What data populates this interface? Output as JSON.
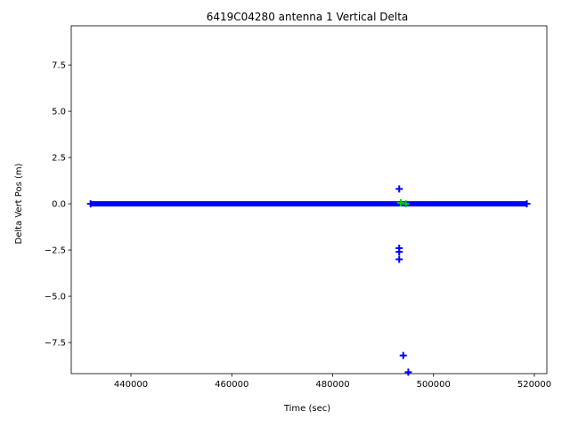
{
  "chart_data": {
    "type": "scatter",
    "title": "6419C04280 antenna 1 Vertical Delta",
    "x_label": "Time (sec)",
    "y_label": "Delta Vert Pos (m)",
    "xlim": [
      428170,
      522470
    ],
    "ylim": [
      -9.18,
      9.62
    ],
    "xticks": [
      440000,
      460000,
      480000,
      500000,
      520000
    ],
    "yticks": [
      {
        "value": -7.5,
        "label": "−7.5"
      },
      {
        "value": -5.0,
        "label": "−5.0"
      },
      {
        "value": -2.5,
        "label": "−2.5"
      },
      {
        "value": 0.0,
        "label": "0.0"
      },
      {
        "value": 2.5,
        "label": "2.5"
      },
      {
        "value": 5.0,
        "label": "5.0"
      },
      {
        "value": 7.5,
        "label": "7.5"
      }
    ],
    "series": [
      {
        "color": "#0000ff",
        "style": "line",
        "x": [
          432000,
          450000,
          470000,
          490000,
          510000,
          518500
        ],
        "values": [
          0,
          0,
          0,
          0,
          0,
          0
        ]
      },
      {
        "color": "#0000ff",
        "style": "marker",
        "x": [
          432000,
          518500,
          493200,
          493200,
          493200,
          493200,
          494000,
          495000
        ],
        "values": [
          0,
          0,
          0.8,
          -2.4,
          -2.6,
          -3.0,
          -8.2,
          -9.1
        ]
      },
      {
        "color": "#00cc00",
        "style": "marker",
        "x": [
          493500,
          494500
        ],
        "values": [
          0.05,
          0
        ]
      }
    ]
  }
}
